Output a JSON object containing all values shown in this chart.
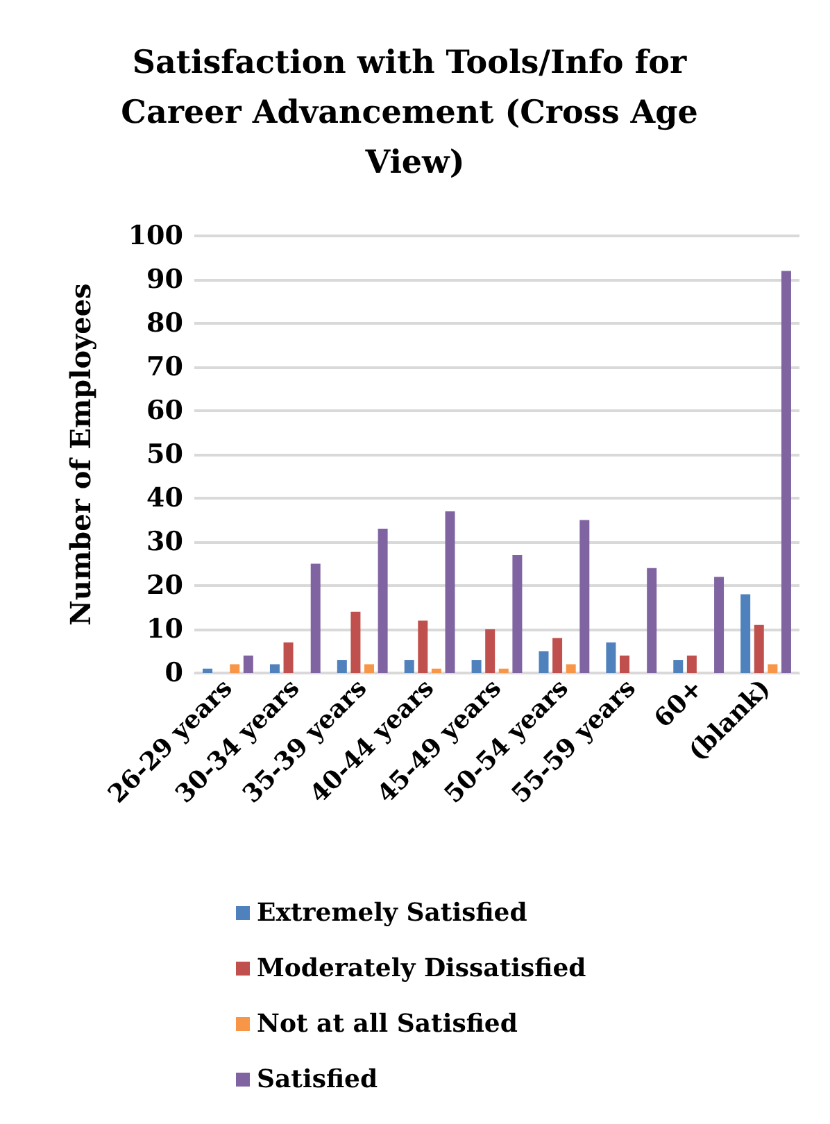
{
  "chart_data": {
    "type": "bar",
    "title": "Satisfaction with Tools/Info for Career Advancement (Cross Age View)",
    "ylabel": "Number of Employees",
    "categories": [
      "26-29 years",
      "30-34 years",
      "35-39 years",
      "40-44 years",
      "45-49 years",
      "50-54 years",
      "55-59 years",
      "60+",
      "(blank)"
    ],
    "series": [
      {
        "name": "Extremely Satisfied",
        "color": "#4f81bd",
        "values": [
          1,
          2,
          3,
          3,
          3,
          5,
          7,
          3,
          18
        ]
      },
      {
        "name": "Moderately Dissatisfied",
        "color": "#c0504d",
        "values": [
          null,
          7,
          14,
          12,
          10,
          8,
          4,
          4,
          11
        ]
      },
      {
        "name": "Not at all Satisfied",
        "color": "#f79646",
        "values": [
          2,
          null,
          2,
          1,
          1,
          2,
          null,
          null,
          2
        ]
      },
      {
        "name": "Satisfied",
        "color": "#8064a2",
        "values": [
          4,
          25,
          33,
          37,
          27,
          35,
          24,
          22,
          92
        ]
      }
    ],
    "ylim": [
      0,
      100
    ],
    "yticks": [
      0,
      10,
      20,
      30,
      40,
      50,
      60,
      70,
      80,
      90,
      100
    ],
    "grid": "y",
    "legend": "bottom"
  }
}
